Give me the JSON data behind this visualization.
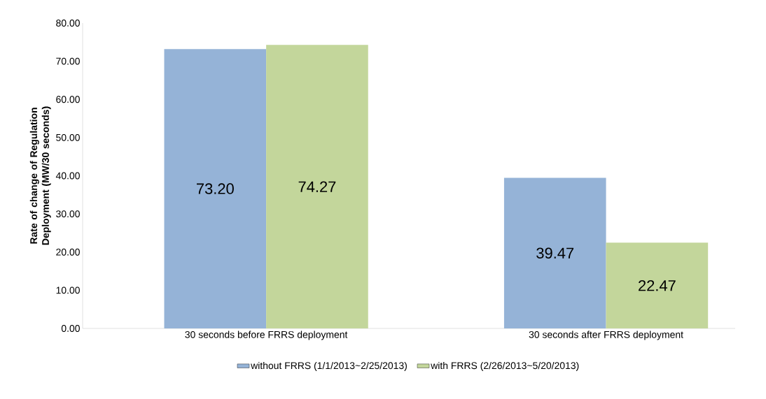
{
  "chart_data": {
    "type": "bar",
    "categories": [
      "30 seconds before FRRS deployment",
      "30 seconds after FRRS deployment"
    ],
    "series": [
      {
        "name": "without FRRS (1/1/2013~2/25/2013)",
        "color": "#95b3d7",
        "values": [
          73.2,
          39.47
        ],
        "value_labels": [
          "73.20",
          "39.47"
        ]
      },
      {
        "name": "with FRRS (2/26/2013~5/20/2013)",
        "color": "#c3d69b",
        "values": [
          74.27,
          22.47
        ],
        "value_labels": [
          "74.27",
          "22.47"
        ]
      }
    ],
    "ylabel": "Rate of change of Regulation Deployment (MW/30 seconds)",
    "ylim": [
      0,
      80
    ],
    "yticks": [
      {
        "value": 0,
        "label": "0.00"
      },
      {
        "value": 10,
        "label": "10.00"
      },
      {
        "value": 20,
        "label": "20.00"
      },
      {
        "value": 30,
        "label": "30.00"
      },
      {
        "value": 40,
        "label": "40.00"
      },
      {
        "value": 50,
        "label": "50.00"
      },
      {
        "value": 60,
        "label": "60.00"
      },
      {
        "value": 70,
        "label": "70.00"
      },
      {
        "value": 80,
        "label": "80.00"
      }
    ],
    "legend": "bottom"
  }
}
